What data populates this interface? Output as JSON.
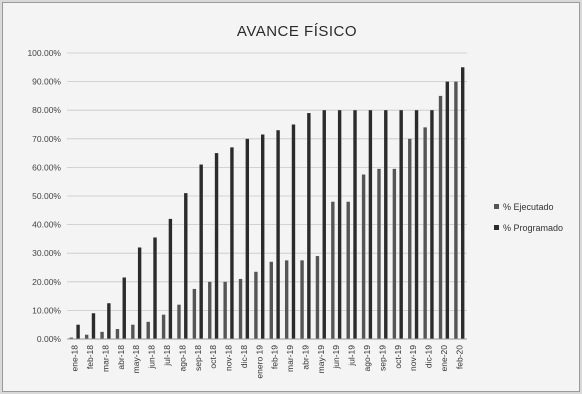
{
  "chart_data": {
    "type": "bar",
    "title": "AVANCE FÍSICO",
    "xlabel": "",
    "ylabel": "",
    "ylim": [
      0,
      100
    ],
    "yticks": [
      "0.00%",
      "10.00%",
      "20.00%",
      "30.00%",
      "40.00%",
      "50.00%",
      "60.00%",
      "70.00%",
      "80.00%",
      "90.00%",
      "100.00%"
    ],
    "grid": true,
    "legend_position": "right",
    "categories": [
      "ene-18",
      "feb-18",
      "mar-18",
      "abr-18",
      "may-18",
      "jun-18",
      "jul-18",
      "ago-18",
      "sep-18",
      "oct-18",
      "nov-18",
      "dic-18",
      "enero 19",
      "feb-19",
      "mar-19",
      "abr-19",
      "may-19",
      "jun-19",
      "jul-19",
      "ago-19",
      "sep-19",
      "oct-19",
      "nov-19",
      "dic-19",
      "ene-20",
      "feb-20"
    ],
    "series": [
      {
        "name": "% Ejecutado",
        "color": "#555555",
        "values": [
          0.5,
          1.5,
          2.5,
          3.5,
          5,
          6,
          8.5,
          12,
          17.5,
          20,
          20,
          21,
          23.5,
          27,
          27.5,
          27.5,
          29,
          48,
          48,
          57.5,
          59.5,
          59.5,
          70,
          74,
          85,
          90
        ]
      },
      {
        "name": "% Programado",
        "color": "#2b2b2b",
        "values": [
          5,
          9,
          12.5,
          21.5,
          32,
          35.5,
          42,
          51,
          61,
          65,
          67,
          70,
          71.5,
          73,
          75,
          79,
          80,
          80,
          80,
          80,
          80,
          80,
          80,
          80,
          90,
          95
        ]
      }
    ]
  }
}
